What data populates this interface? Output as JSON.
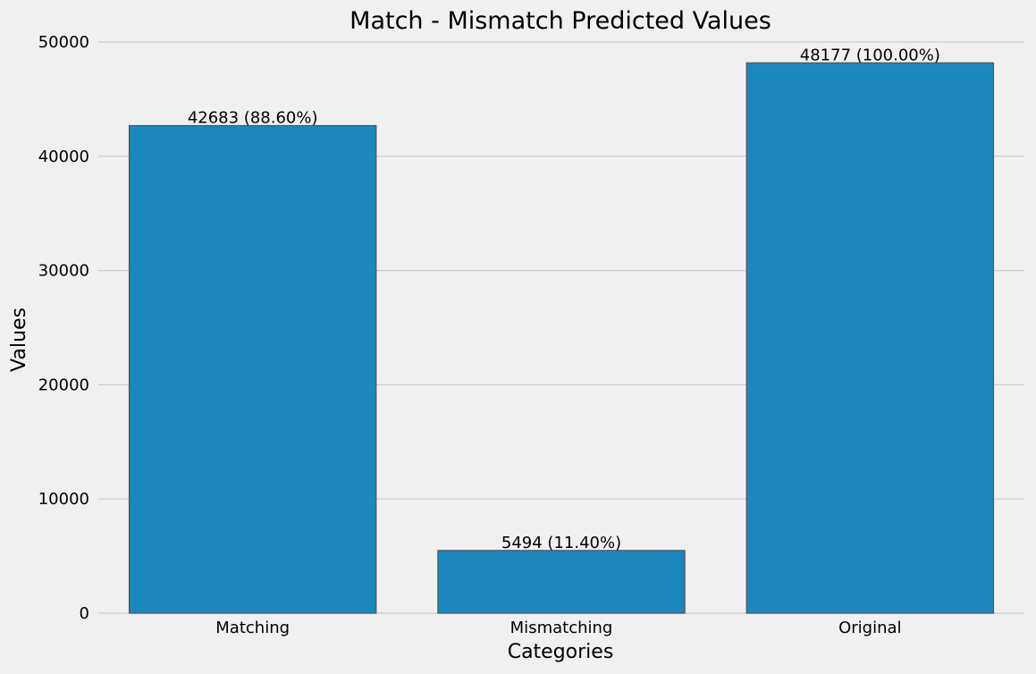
{
  "chart_data": {
    "type": "bar",
    "title": "Match - Mismatch Predicted Values",
    "xlabel": "Categories",
    "ylabel": "Values",
    "categories": [
      "Matching",
      "Mismatching",
      "Original"
    ],
    "values": [
      42683,
      5494,
      48177
    ],
    "data_labels": [
      "42683 (88.60%)",
      "5494 (11.40%)",
      "48177 (100.00%)"
    ],
    "ylim": [
      0,
      50000
    ],
    "yticks": [
      0,
      10000,
      20000,
      30000,
      40000,
      50000
    ],
    "ytick_labels": [
      "0",
      "10000",
      "20000",
      "30000",
      "40000",
      "50000"
    ],
    "grid": true,
    "bar_color": "#1b87bd",
    "bar_edge_color": "#555555",
    "background_color": "#f0f0f0",
    "grid_color": "#cbcbcb"
  }
}
